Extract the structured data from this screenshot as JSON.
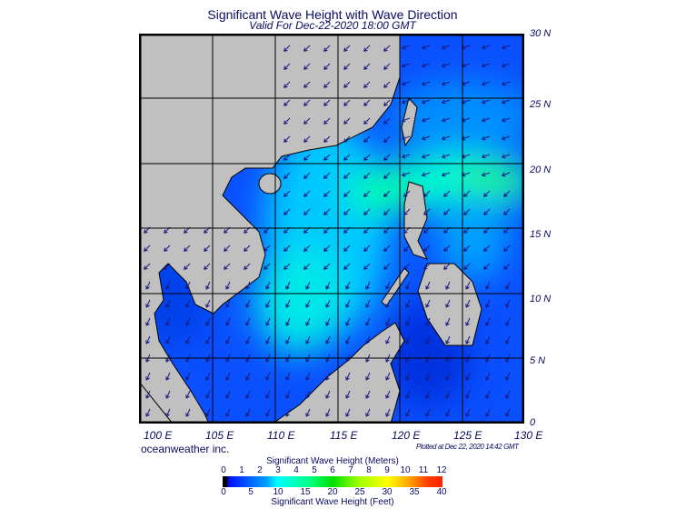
{
  "header": {
    "title": "Significant Wave Height with Wave Direction",
    "subtitle": "Valid For Dec-22-2020 18:00 GMT"
  },
  "map": {
    "lat_labels": [
      "30 N",
      "25 N",
      "20 N",
      "15 N",
      "10 N",
      "5 N",
      "0"
    ],
    "lon_labels": [
      "100 E",
      "105 E",
      "110 E",
      "115 E",
      "120 E",
      "125 E",
      "130 E"
    ],
    "arrow_direction": "southwest",
    "colors": {
      "land": "#c0c0c0",
      "low": "#0050ff",
      "mid": "#00e8ff",
      "high": "#00ff80",
      "arrows": "#1a1a80"
    }
  },
  "footer": {
    "brand": "oceanweather inc.",
    "plotted": "Plotted at Dec 22, 2020 14:42 GMT"
  },
  "colorbar": {
    "top_label": "Significant Wave Height (Meters)",
    "bottom_label": "Significant Wave Height (Feet)",
    "meters": [
      "0",
      "1",
      "2",
      "3",
      "4",
      "5",
      "6",
      "7",
      "8",
      "9",
      "10",
      "11",
      "12"
    ],
    "feet": [
      "0",
      "5",
      "10",
      "15",
      "20",
      "25",
      "30",
      "35",
      "40"
    ]
  }
}
